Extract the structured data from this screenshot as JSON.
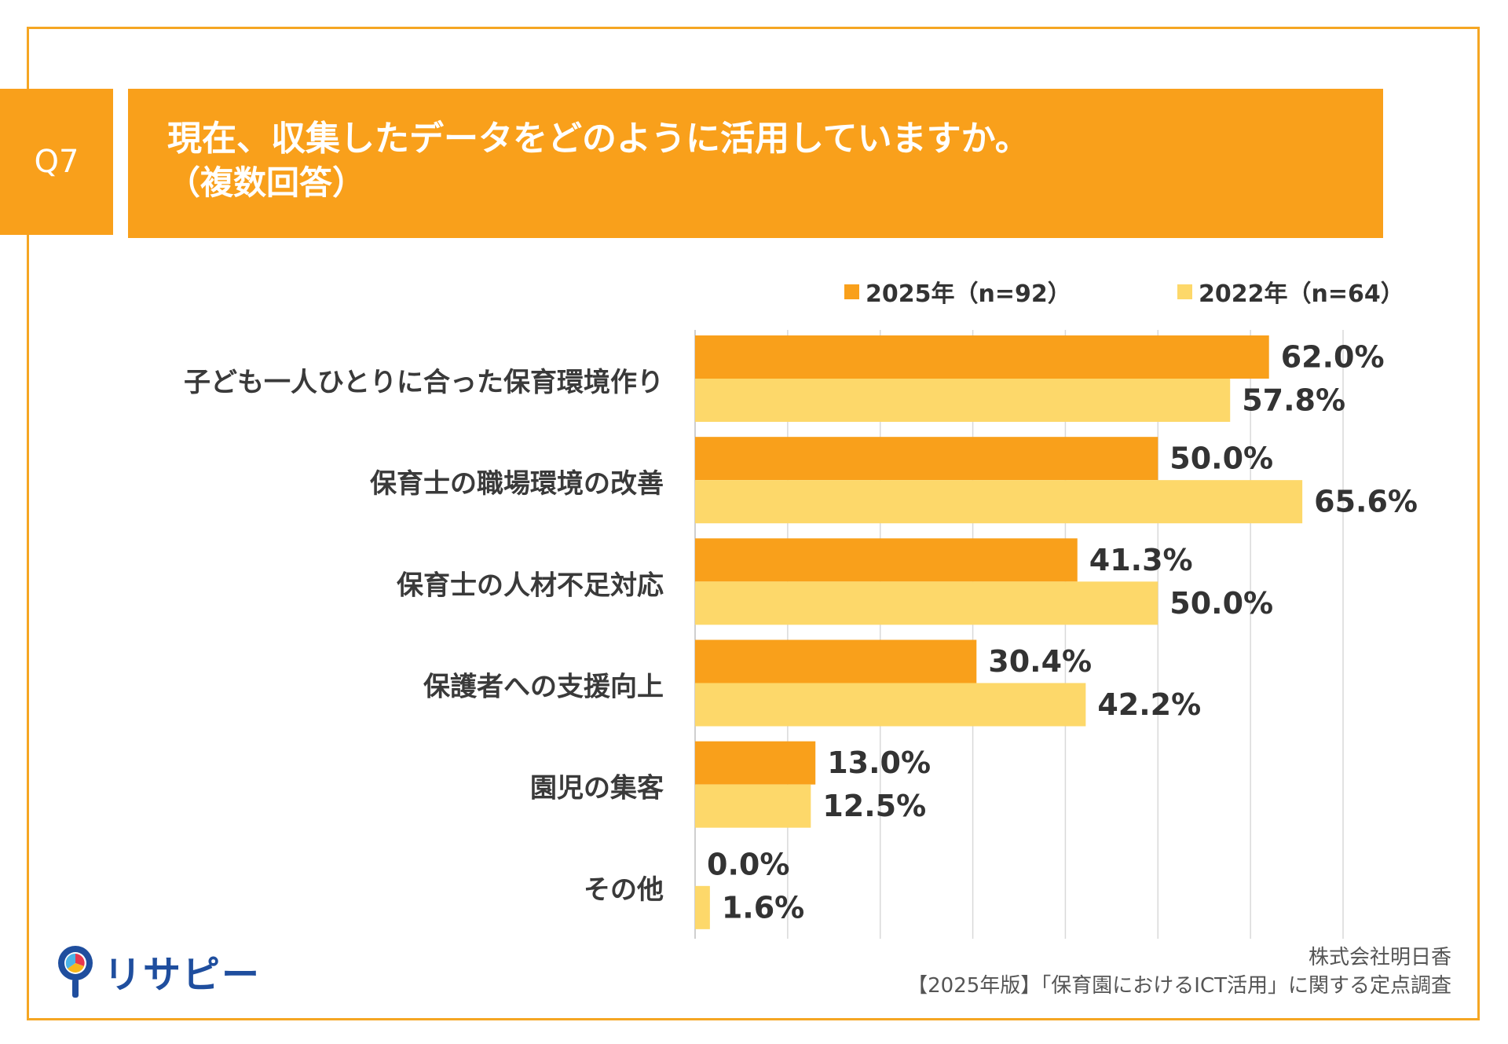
{
  "header": {
    "q_number": "Q7",
    "title_line1": "現在、収集したデータをどのように活用していますか。",
    "title_line2": "（複数回答）"
  },
  "colors": {
    "accent": "#f9a01b",
    "series_2025": "#f9a01b",
    "series_2022": "#fdd86a",
    "frame": "#f5a623",
    "grid": "#d9d9d9"
  },
  "chart_data": {
    "type": "bar",
    "orientation": "horizontal",
    "categories": [
      "子ども一人ひとりに合った保育環境作り",
      "保育士の職場環境の改善",
      "保育士の人材不足対応",
      "保護者への支援向上",
      "園児の集客",
      "その他"
    ],
    "series": [
      {
        "name": "2025年（n=92）",
        "values": [
          62.0,
          50.0,
          41.3,
          30.4,
          13.0,
          0.0
        ],
        "labels": [
          "62.0%",
          "50.0%",
          "41.3%",
          "30.4%",
          "13.0%",
          "0.0%"
        ]
      },
      {
        "name": "2022年（n=64）",
        "values": [
          57.8,
          65.6,
          50.0,
          42.2,
          12.5,
          1.6
        ],
        "labels": [
          "57.8%",
          "65.6%",
          "50.0%",
          "42.2%",
          "12.5%",
          "1.6%"
        ]
      }
    ],
    "xlim": [
      0,
      70
    ],
    "grid": true,
    "legend_position": "top-right"
  },
  "footer": {
    "logo_text": "リサピー",
    "company": "株式会社明日香",
    "survey": "【2025年版】「保育園におけるICT活用」に関する定点調査"
  }
}
